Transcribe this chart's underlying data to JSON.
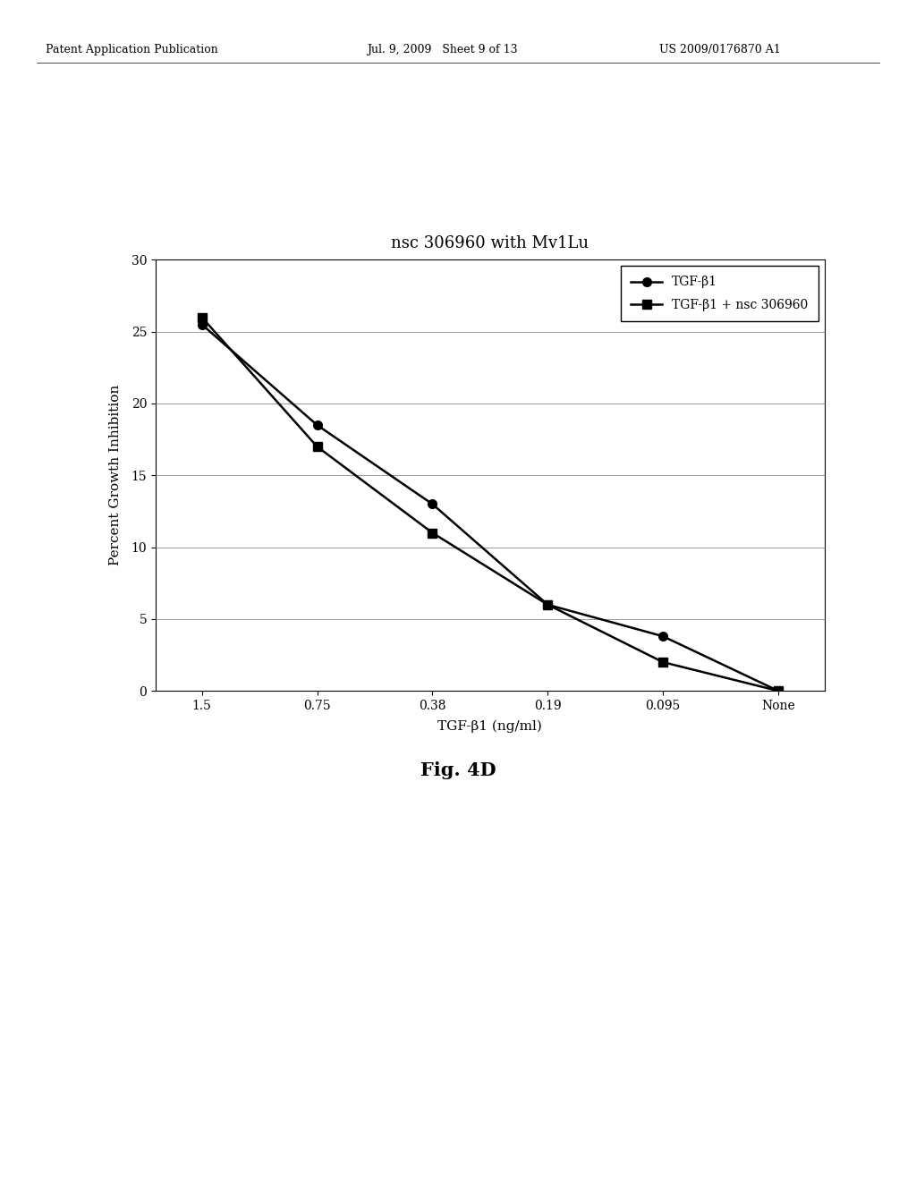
{
  "title": "nsc 306960 with Mv1Lu",
  "xlabel": "TGF-β1 (ng/ml)",
  "ylabel": "Percent Growth Inhibition",
  "fig_caption": "Fig. 4D",
  "header_left": "Patent Application Publication",
  "header_mid": "Jul. 9, 2009   Sheet 9 of 13",
  "header_right": "US 2009/0176870 A1",
  "x_labels": [
    "1.5",
    "0.75",
    "0.38",
    "0.19",
    "0.095",
    "None"
  ],
  "series1_label": "TGF-β1",
  "series1_y": [
    25.5,
    18.5,
    13.0,
    6.0,
    3.8,
    0.0
  ],
  "series2_label": "TGF-β1 + nsc 306960",
  "series2_y": [
    26.0,
    17.0,
    11.0,
    6.0,
    2.0,
    0.0
  ],
  "ylim": [
    0,
    30
  ],
  "yticks": [
    0,
    5,
    10,
    15,
    20,
    25,
    30
  ],
  "line_color": "#000000",
  "marker1": "o",
  "marker2": "s",
  "markersize": 7,
  "linewidth": 1.8,
  "background_color": "#ffffff",
  "grid_color": "#999999",
  "title_fontsize": 13,
  "label_fontsize": 11,
  "tick_fontsize": 10,
  "legend_fontsize": 10,
  "caption_fontsize": 15,
  "header_fontsize": 9
}
